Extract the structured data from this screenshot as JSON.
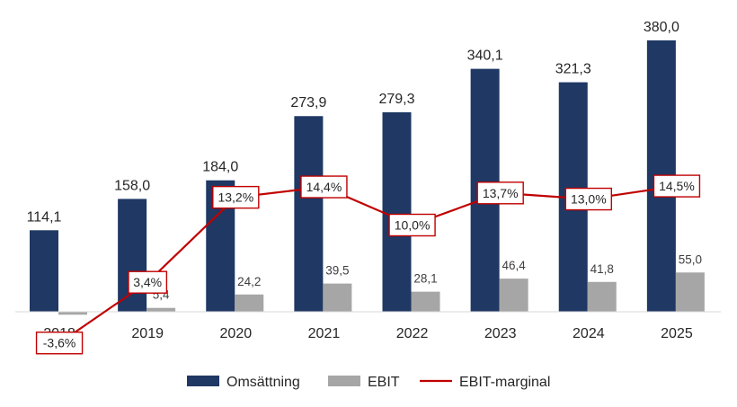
{
  "chart_data": {
    "type": "bar",
    "categories": [
      "2018",
      "2019",
      "2020",
      "2021",
      "2022",
      "2023",
      "2024",
      "2025"
    ],
    "series": [
      {
        "name": "Omsättning",
        "kind": "bar",
        "color": "#1f3864",
        "values": [
          114.1,
          158.0,
          184.0,
          273.9,
          279.3,
          340.1,
          321.3,
          380.0
        ],
        "labels": [
          "114,1",
          "158,0",
          "184,0",
          "273,9",
          "279,3",
          "340,1",
          "321,3",
          "380,0"
        ]
      },
      {
        "name": "EBIT",
        "kind": "bar",
        "color": "#a6a6a6",
        "values": [
          -4.1,
          5.4,
          24.2,
          39.5,
          28.1,
          46.4,
          41.8,
          55.0
        ],
        "labels": [
          "",
          "5,4",
          "24,2",
          "39,5",
          "28,1",
          "46,4",
          "41,8",
          "55,0"
        ]
      },
      {
        "name": "EBIT-marginal",
        "kind": "line",
        "color": "#c00000",
        "values": [
          -3.6,
          3.4,
          13.2,
          14.4,
          10.0,
          13.7,
          13.0,
          14.5
        ],
        "labels": [
          "-3,6%",
          "3,4%",
          "13,2%",
          "14,4%",
          "10,0%",
          "13,7%",
          "13,0%",
          "14,5%"
        ]
      }
    ],
    "legend": {
      "position": "bottom"
    },
    "grid": false
  }
}
